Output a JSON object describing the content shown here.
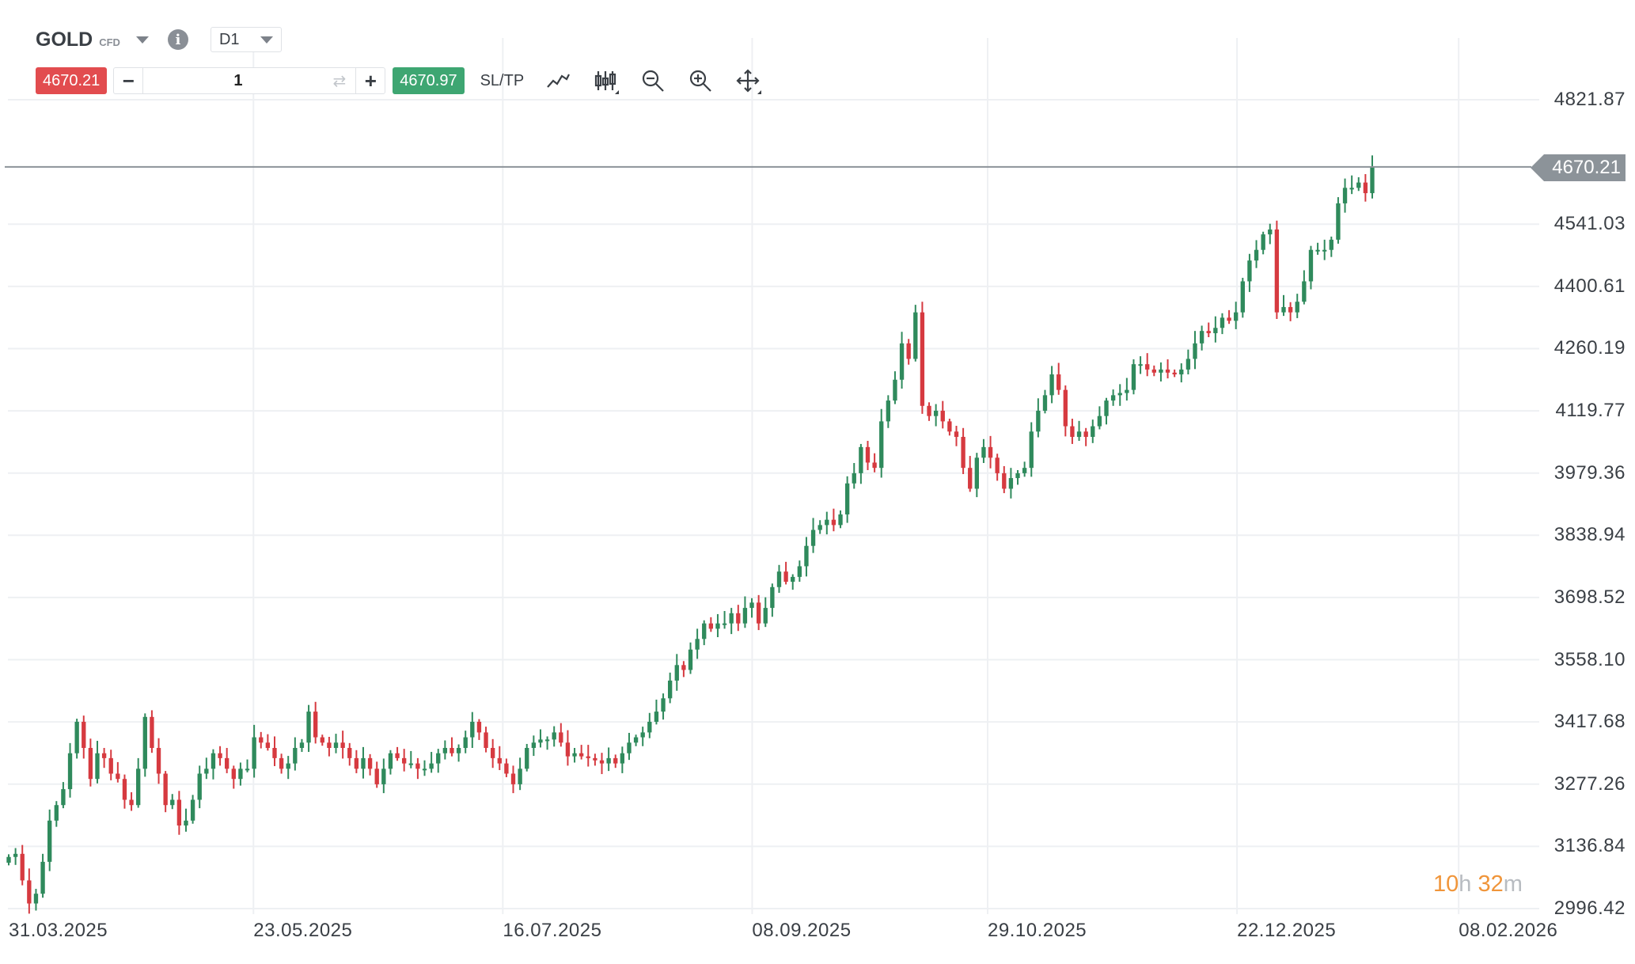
{
  "header": {
    "symbol": "GOLD",
    "instrument_type": "CFD",
    "timeframe": "D1"
  },
  "trade": {
    "sell_price": "4670.21",
    "quantity": "1",
    "buy_price": "4670.97",
    "sltp_label": "SL/TP"
  },
  "toolbar_icons": [
    "line-chart-icon",
    "candlestick-chart-icon",
    "zoom-out-icon",
    "zoom-in-icon",
    "move-crosshair-icon"
  ],
  "colors": {
    "up": "#2f8a5c",
    "down": "#d63a40",
    "sell": "#e24c4f",
    "buy": "#3ea672",
    "countdown": "#f0953a",
    "price_line": "#8c9399"
  },
  "chart_data": {
    "type": "candlestick",
    "title": "GOLD CFD D1",
    "xlabel": "",
    "ylabel": "",
    "grid": true,
    "ylim": [
      2996.42,
      4821.87
    ],
    "y_ticks": [
      "4821.87",
      "4541.03",
      "4400.61",
      "4260.19",
      "4119.77",
      "3979.36",
      "3838.94",
      "3698.52",
      "3558.10",
      "3417.68",
      "3277.26",
      "3136.84",
      "2996.42"
    ],
    "x_ticks": [
      "31.03.2025",
      "23.05.2025",
      "16.07.2025",
      "08.09.2025",
      "29.10.2025",
      "22.12.2025",
      "08.02.2026"
    ],
    "current_price": "4670.21",
    "countdown": {
      "hours": "10",
      "hours_unit": "h",
      "minutes": "32",
      "minutes_unit": "m"
    },
    "first_open": 3100,
    "closes": [
      3113,
      3120,
      3060,
      3008,
      3030,
      3102,
      3195,
      3230,
      3266,
      3347,
      3418,
      3359,
      3289,
      3347,
      3336,
      3301,
      3289,
      3242,
      3230,
      3312,
      3429,
      3359,
      3301,
      3230,
      3242,
      3184,
      3195,
      3242,
      3301,
      3312,
      3347,
      3336,
      3312,
      3289,
      3312,
      3312,
      3383,
      3371,
      3359,
      3336,
      3312,
      3324,
      3359,
      3371,
      3441,
      3383,
      3371,
      3359,
      3371,
      3359,
      3336,
      3312,
      3336,
      3312,
      3277,
      3312,
      3347,
      3336,
      3324,
      3324,
      3312,
      3312,
      3324,
      3347,
      3359,
      3347,
      3359,
      3383,
      3418,
      3394,
      3359,
      3336,
      3324,
      3301,
      3277,
      3312,
      3359,
      3371,
      3378,
      3378,
      3394,
      3371,
      3340,
      3347,
      3340,
      3336,
      3331,
      3324,
      3336,
      3324,
      3347,
      3371,
      3383,
      3394,
      3418,
      3441,
      3471,
      3511,
      3546,
      3535,
      3581,
      3605,
      3640,
      3628,
      3640,
      3640,
      3663,
      3640,
      3675,
      3687,
      3640,
      3675,
      3722,
      3757,
      3734,
      3745,
      3769,
      3815,
      3851,
      3862,
      3874,
      3862,
      3886,
      3956,
      3979,
      4038,
      4003,
      3991,
      4096,
      4143,
      4190,
      4272,
      4237,
      4342,
      4131,
      4108,
      4120,
      4096,
      4073,
      4061,
      3991,
      3944,
      4014,
      4038,
      4014,
      3979,
      3944,
      3968,
      3979,
      3991,
      4073,
      4120,
      4155,
      4202,
      4167,
      4085,
      4061,
      4073,
      4061,
      4085,
      4108,
      4143,
      4155,
      4160,
      4167,
      4225,
      4225,
      4213,
      4206,
      4213,
      4206,
      4202,
      4213,
      4237,
      4272,
      4300,
      4295,
      4307,
      4330,
      4323,
      4342,
      4412,
      4459,
      4483,
      4518,
      4529,
      4342,
      4354,
      4342,
      4366,
      4412,
      4483,
      4483,
      4483,
      4506,
      4588,
      4623,
      4623,
      4635,
      4611,
      4670.21
    ]
  }
}
